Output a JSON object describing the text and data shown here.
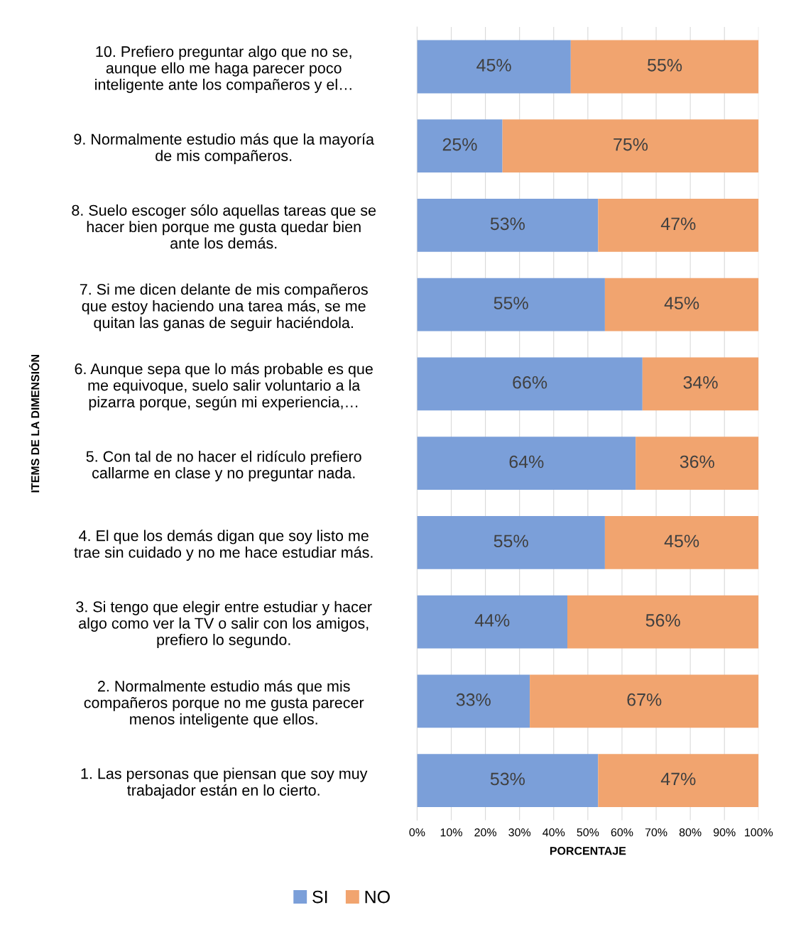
{
  "chart_data": {
    "type": "bar",
    "orientation": "horizontal",
    "stacked": true,
    "xlabel": "PORCENTAJE",
    "ylabel": "ITEMS DE LA DIMENSIÓN",
    "categories": [
      "10. Prefiero preguntar algo que no se,\naunque ello me haga parecer poco\ninteligente ante los compañeros y el…",
      "9. Normalmente estudio más que la mayoría\nde mis compañeros.",
      "8. Suelo escoger sólo aquellas tareas que se\nhacer bien porque me gusta quedar bien\nante los demás.",
      "7. Si me dicen delante de mis compañeros\nque estoy haciendo una tarea más, se me\nquitan las ganas de seguir haciéndola.",
      "6. Aunque sepa que lo más probable es que\nme equivoque, suelo salir voluntario a la\npizarra porque, según mi experiencia,…",
      "5. Con tal de no hacer el ridículo prefiero\ncallarme en clase y no preguntar nada.",
      "4. El que los demás digan que soy listo me\ntrae sin cuidado y no me hace estudiar más.",
      "3. Si tengo que elegir entre estudiar y hacer\nalgo como ver la TV o salir con los amigos,\nprefiero lo segundo.",
      "2. Normalmente estudio más que mis\ncompañeros porque no me gusta parecer\nmenos inteligente que ellos.",
      "1. Las personas que piensan que soy muy\ntrabajador están en lo cierto."
    ],
    "series": [
      {
        "name": "SI",
        "color": "#7b9fd9",
        "values": [
          45,
          25,
          53,
          55,
          66,
          64,
          55,
          44,
          33,
          53
        ],
        "value_labels": [
          "45%",
          "25%",
          "53%",
          "55%",
          "66%",
          "64%",
          "55%",
          "44%",
          "33%",
          "53%"
        ]
      },
      {
        "name": "NO",
        "color": "#f1a46f",
        "values": [
          55,
          75,
          47,
          45,
          34,
          36,
          45,
          56,
          67,
          47
        ],
        "value_labels": [
          "55%",
          "75%",
          "47%",
          "45%",
          "34%",
          "36%",
          "45%",
          "56%",
          "67%",
          "47%"
        ]
      }
    ],
    "xlim": [
      0,
      100
    ],
    "xticks": [
      {
        "value": 0,
        "label": "0%"
      },
      {
        "value": 10,
        "label": "10%"
      },
      {
        "value": 20,
        "label": "20%"
      },
      {
        "value": 30,
        "label": "30%"
      },
      {
        "value": 40,
        "label": "40%"
      },
      {
        "value": 50,
        "label": "50%"
      },
      {
        "value": 60,
        "label": "60%"
      },
      {
        "value": 70,
        "label": "70%"
      },
      {
        "value": 80,
        "label": "80%"
      },
      {
        "value": 90,
        "label": "90%"
      },
      {
        "value": 100,
        "label": "100%"
      }
    ],
    "grid": "x",
    "legend": "bottom"
  }
}
